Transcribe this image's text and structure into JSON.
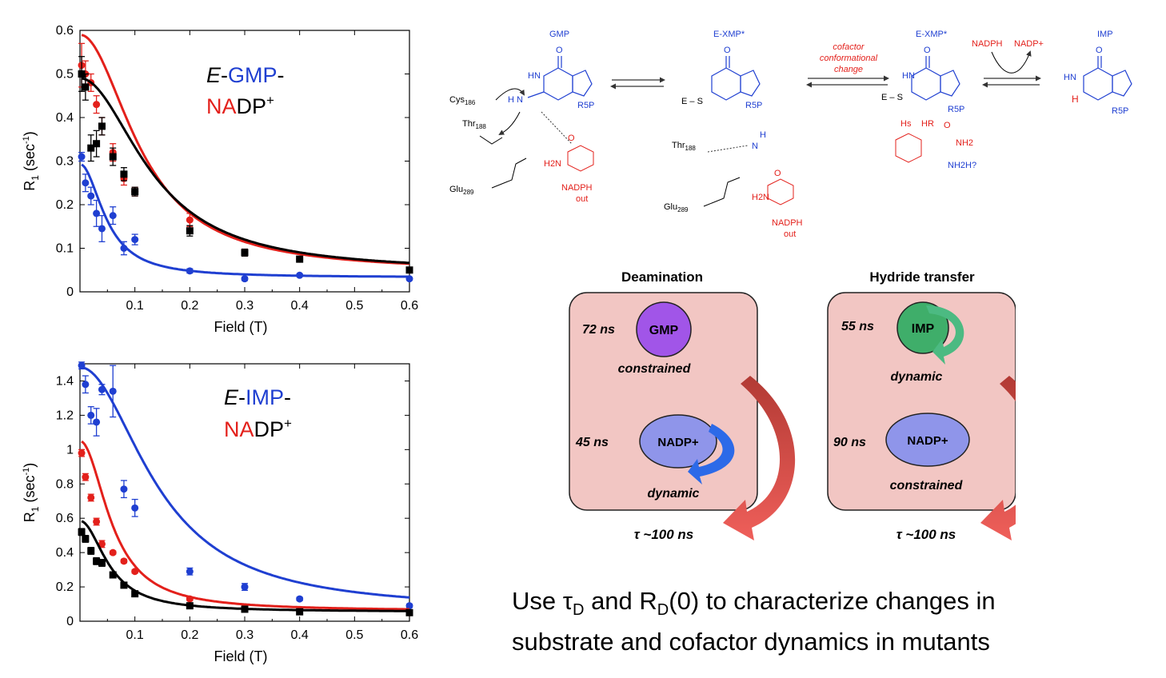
{
  "colors": {
    "blue": "#1f3fd1",
    "red": "#e3201b",
    "black": "#000000",
    "panel": "#f2c6c3",
    "gmp": "#a155e8",
    "imp": "#3fae6a",
    "nadp": "#8f95ea"
  },
  "chart_data": [
    {
      "type": "scatter",
      "xlabel": "Field (T)",
      "ylabel_main": "R",
      "ylabel_sub": "1",
      "ylabel_unit_pre": " (sec",
      "ylabel_unit_sup": "-1",
      "ylabel_unit_post": ")",
      "xlim": [
        0,
        0.6
      ],
      "ylim": [
        0,
        0.6
      ],
      "xticks": [
        0.1,
        0.2,
        0.3,
        0.4,
        0.5,
        0.6
      ],
      "xtick_labels": [
        "0.1",
        "0.2",
        "0.3",
        "0.4",
        "0.5",
        "0.6"
      ],
      "yticks": [
        0,
        0.1,
        0.2,
        0.3,
        0.4,
        0.5,
        0.6
      ],
      "ytick_labels": [
        "0",
        "0.1",
        "0.2",
        "0.3",
        "0.4",
        "0.5",
        "0.6"
      ],
      "label": {
        "italic": "E",
        "dash1": "-",
        "substrate": "GMP",
        "dash2": "-",
        "na": "NA",
        "dp": "DP",
        "plus": "+"
      },
      "series": [
        {
          "color": "red",
          "marker": "circle",
          "x": [
            0.003,
            0.01,
            0.02,
            0.03,
            0.04,
            0.06,
            0.08,
            0.1,
            0.2,
            0.3,
            0.4,
            0.6
          ],
          "y": [
            0.52,
            0.5,
            0.48,
            0.43,
            0.38,
            0.32,
            0.26,
            0.23,
            0.165,
            0.09,
            0.075,
            0.05
          ],
          "err": [
            0.05,
            0.03,
            0.02,
            0.02,
            0.02,
            0.02,
            0.015,
            0.01,
            0.015,
            0.008,
            0.005,
            0.005
          ],
          "fit": {
            "a": 0.545,
            "tau": 0.115,
            "c": 0.045
          }
        },
        {
          "color": "black",
          "marker": "square",
          "x": [
            0.003,
            0.01,
            0.02,
            0.03,
            0.04,
            0.06,
            0.08,
            0.1,
            0.2,
            0.3,
            0.4,
            0.6
          ],
          "y": [
            0.5,
            0.47,
            0.33,
            0.34,
            0.38,
            0.31,
            0.27,
            0.23,
            0.14,
            0.09,
            0.075,
            0.05
          ],
          "err": [
            0.04,
            0.03,
            0.03,
            0.03,
            0.02,
            0.02,
            0.015,
            0.01,
            0.012,
            0.008,
            0.005,
            0.005
          ],
          "fit": {
            "a": 0.445,
            "tau": 0.135,
            "c": 0.045
          }
        },
        {
          "color": "blue",
          "marker": "circle",
          "x": [
            0.003,
            0.01,
            0.02,
            0.03,
            0.04,
            0.06,
            0.08,
            0.1,
            0.2,
            0.3,
            0.4,
            0.6
          ],
          "y": [
            0.31,
            0.25,
            0.22,
            0.18,
            0.145,
            0.175,
            0.1,
            0.12,
            0.048,
            0.03,
            0.038,
            0.03
          ],
          "err": [
            0.01,
            0.02,
            0.02,
            0.03,
            0.03,
            0.02,
            0.015,
            0.012,
            0.005,
            0.004,
            0.003,
            0.003
          ],
          "fit": {
            "a": 0.26,
            "tau": 0.05,
            "c": 0.033
          }
        }
      ]
    },
    {
      "type": "scatter",
      "xlabel": "Field (T)",
      "ylabel_main": "R",
      "ylabel_sub": "1",
      "ylabel_unit_pre": " (sec",
      "ylabel_unit_sup": "-1",
      "ylabel_unit_post": ")",
      "xlim": [
        0,
        0.6
      ],
      "ylim": [
        0,
        1.5
      ],
      "xticks": [
        0.1,
        0.2,
        0.3,
        0.4,
        0.5,
        0.6
      ],
      "xtick_labels": [
        "0.1",
        "0.2",
        "0.3",
        "0.4",
        "0.5",
        "0.6"
      ],
      "yticks": [
        0,
        0.2,
        0.4,
        0.6,
        0.8,
        1,
        1.2,
        1.4
      ],
      "ytick_labels": [
        "0",
        "0.2",
        "0.4",
        "0.6",
        "0.8",
        "1",
        "1.2",
        "1.4"
      ],
      "label": {
        "italic": "E",
        "dash1": "-",
        "substrate": "IMP",
        "dash2": "-",
        "na": "NA",
        "dp": "DP",
        "plus": "+"
      },
      "series": [
        {
          "color": "blue",
          "marker": "circle",
          "x": [
            0.003,
            0.01,
            0.02,
            0.03,
            0.04,
            0.06,
            0.08,
            0.1,
            0.2,
            0.3,
            0.4,
            0.6
          ],
          "y": [
            1.49,
            1.38,
            1.2,
            1.16,
            1.35,
            1.34,
            0.77,
            0.66,
            0.29,
            0.2,
            0.13,
            0.09
          ],
          "err": [
            0.02,
            0.05,
            0.05,
            0.08,
            0.03,
            0.15,
            0.05,
            0.05,
            0.02,
            0.02,
            0.01,
            0.01
          ],
          "fit": {
            "a": 1.42,
            "tau": 0.145,
            "c": 0.06
          }
        },
        {
          "color": "red",
          "marker": "circle",
          "x": [
            0.003,
            0.01,
            0.02,
            0.03,
            0.04,
            0.06,
            0.08,
            0.1,
            0.2,
            0.3,
            0.4,
            0.6
          ],
          "y": [
            0.98,
            0.84,
            0.72,
            0.58,
            0.45,
            0.4,
            0.35,
            0.29,
            0.13,
            0.08,
            0.06,
            0.05
          ],
          "err": [
            0.02,
            0.02,
            0.02,
            0.02,
            0.02,
            0.01,
            0.01,
            0.01,
            0.01,
            0.005,
            0.005,
            0.005
          ],
          "fit": {
            "a": 0.99,
            "tau": 0.06,
            "c": 0.06
          }
        },
        {
          "color": "black",
          "marker": "square",
          "x": [
            0.003,
            0.01,
            0.02,
            0.03,
            0.04,
            0.06,
            0.08,
            0.1,
            0.2,
            0.3,
            0.4,
            0.6
          ],
          "y": [
            0.52,
            0.48,
            0.41,
            0.35,
            0.34,
            0.27,
            0.21,
            0.16,
            0.09,
            0.07,
            0.055,
            0.05
          ],
          "err": [
            0.02,
            0.02,
            0.02,
            0.02,
            0.02,
            0.01,
            0.01,
            0.01,
            0.005,
            0.005,
            0.005,
            0.005
          ],
          "fit": {
            "a": 0.53,
            "tau": 0.055,
            "c": 0.055
          }
        }
      ]
    }
  ],
  "scheme": {
    "stages": [
      {
        "label": "GMP",
        "r5p": "R5P"
      },
      {
        "label": "E-XMP*",
        "r5p": "R5P"
      },
      {
        "label": "E-XMP*",
        "r5p": "R5P"
      },
      {
        "label": "IMP",
        "r5p": "R5P"
      }
    ],
    "cofactor_change": [
      "cofactor",
      "conformational",
      "change"
    ],
    "nadph": "NADPH",
    "nadp_plus": "NADP+",
    "cys": "Cys",
    "cys_sub": "186",
    "thr": "Thr",
    "thr_sub": "188",
    "glu": "Glu",
    "glu_sub": "289",
    "es": "E – S",
    "nadph_out": [
      "NADPH",
      "out"
    ],
    "nh2q": "NH2H?",
    "hs": "Hs",
    "hr": "HR",
    "h2n": "H2N",
    "nh2": "NH2",
    "hn": "HN",
    "h": "H",
    "n": "N",
    "o": "O"
  },
  "panels": [
    {
      "title": "Deamination",
      "top_time": "72 ns",
      "top_mol": "GMP",
      "top_state": "constrained",
      "bottom_time": "45 ns",
      "bottom_mol": "NADP+",
      "bottom_state": "dynamic",
      "tau": "τ ~100 ns"
    },
    {
      "title": "Hydride transfer",
      "top_time": "55 ns",
      "top_mol": "IMP",
      "top_state": "dynamic",
      "bottom_time": "90 ns",
      "bottom_mol": "NADP+",
      "bottom_state": "constrained",
      "tau": "τ  ~100 ns"
    }
  ],
  "caption": {
    "l1_a": "Use ",
    "tau": "τ",
    "d1": "D",
    "l1_b": " and R",
    "d2": "D",
    "l1_c": "(0) to characterize changes in",
    "line2": "substrate and cofactor dynamics in mutants"
  }
}
